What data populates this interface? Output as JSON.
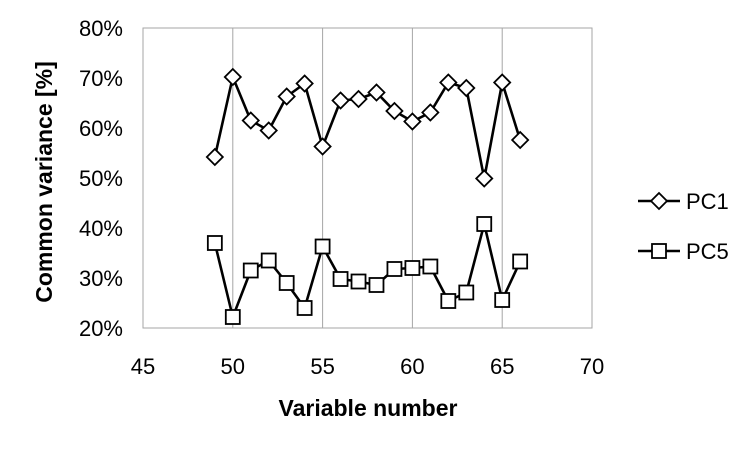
{
  "chart_data": {
    "type": "line",
    "xlabel": "Variable number",
    "ylabel": "Common variance [%]",
    "xlim": [
      45,
      70
    ],
    "ylim": [
      20,
      80
    ],
    "x_ticks": [
      "45",
      "50",
      "55",
      "60",
      "65",
      "70"
    ],
    "y_ticks": [
      "20%",
      "30%",
      "40%",
      "50%",
      "60%",
      "70%",
      "80%"
    ],
    "grid": "vertical",
    "legend": "right",
    "series": [
      {
        "name": "PC1",
        "marker": "diamond",
        "color": "#000000",
        "x": [
          49,
          50,
          51,
          52,
          53,
          54,
          55,
          56,
          57,
          58,
          59,
          60,
          61,
          62,
          63,
          64,
          65,
          66
        ],
        "values": [
          54.2,
          70.2,
          61.5,
          59.5,
          66.3,
          68.9,
          56.3,
          65.5,
          65.8,
          67.1,
          63.4,
          61.3,
          63.1,
          69.1,
          68.0,
          49.9,
          69.1,
          57.6
        ]
      },
      {
        "name": "PC5",
        "marker": "square",
        "color": "#000000",
        "x": [
          49,
          50,
          51,
          52,
          53,
          54,
          55,
          56,
          57,
          58,
          59,
          60,
          61,
          62,
          63,
          64,
          65,
          66
        ],
        "values": [
          37.0,
          22.2,
          31.5,
          33.5,
          29.0,
          24.0,
          36.3,
          29.8,
          29.3,
          28.6,
          31.8,
          32.0,
          32.3,
          25.4,
          27.1,
          40.8,
          25.6,
          33.3
        ]
      }
    ]
  }
}
